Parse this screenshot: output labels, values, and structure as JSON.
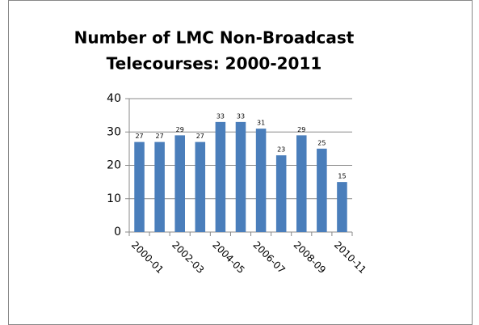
{
  "chart_data": {
    "type": "bar",
    "title": [
      "Number of LMC Non-Broadcast",
      "Telecourses: 2000-2011"
    ],
    "categories": [
      "2000-01",
      null,
      "2002-03",
      null,
      "2004-05",
      null,
      "2006-07",
      null,
      "2008-09",
      null,
      "2010-11"
    ],
    "values": [
      27,
      27,
      29,
      27,
      33,
      33,
      31,
      23,
      29,
      25,
      15
    ],
    "color": "#4a7ebb",
    "ylim": [
      0,
      40
    ],
    "yticks": [
      0,
      10,
      20,
      30,
      40
    ],
    "grid": true
  }
}
